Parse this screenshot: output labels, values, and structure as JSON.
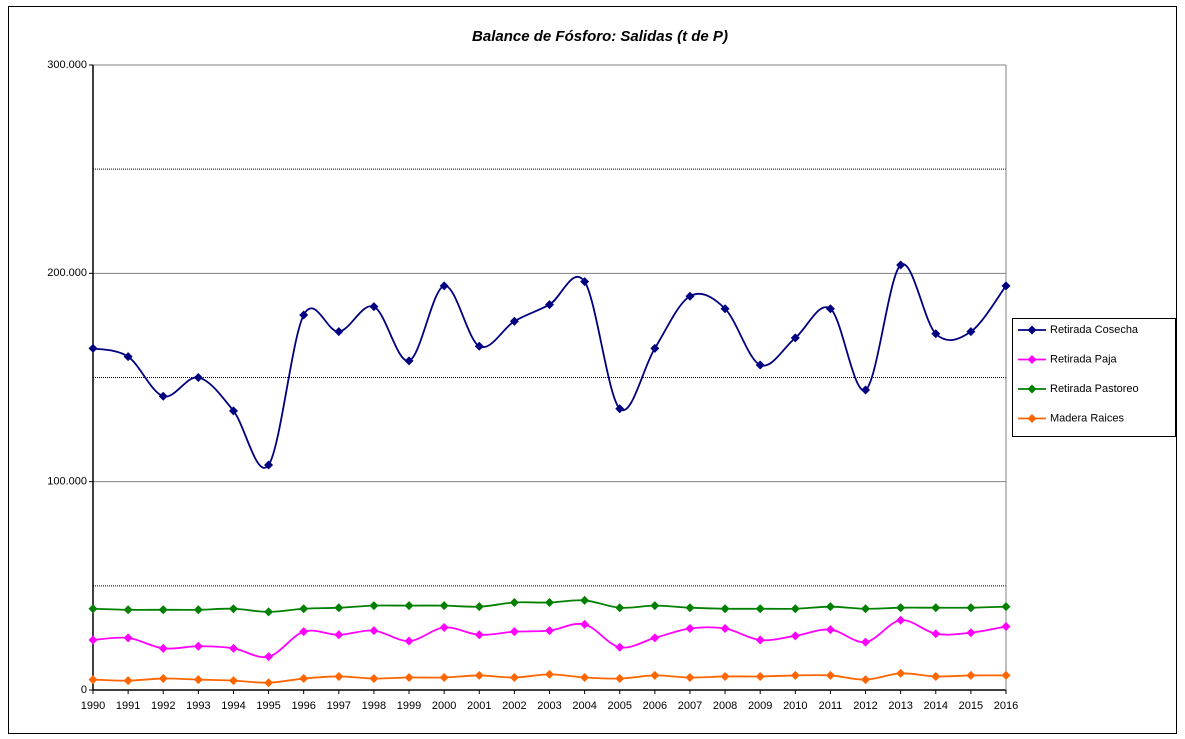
{
  "chart_data": {
    "type": "line",
    "title": "Balance de Fósforo: Salidas (t de P)",
    "categories": [
      "1990",
      "1991",
      "1992",
      "1993",
      "1994",
      "1995",
      "1996",
      "1997",
      "1998",
      "1999",
      "2000",
      "2001",
      "2002",
      "2003",
      "2004",
      "2005",
      "2006",
      "2007",
      "2008",
      "2009",
      "2010",
      "2011",
      "2012",
      "2013",
      "2014",
      "2015",
      "2016"
    ],
    "ylim": [
      0,
      300000
    ],
    "yticks": [
      0,
      {
        "value": 100000,
        "label": "100.000"
      },
      {
        "value": 200000,
        "label": "200.000"
      },
      {
        "value": 300000,
        "label": "300.000"
      }
    ],
    "yminor": [
      50000,
      150000,
      250000
    ],
    "grid": true,
    "smooth": true,
    "legend": "right",
    "series": [
      {
        "name": "Retirada Cosecha",
        "color": "#000080",
        "values": [
          164000,
          160000,
          141000,
          150000,
          134000,
          108000,
          180000,
          172000,
          184000,
          158000,
          194000,
          165000,
          177000,
          185000,
          196000,
          135000,
          164000,
          189000,
          183000,
          156000,
          169000,
          183000,
          144000,
          204000,
          171000,
          172000,
          194000
        ]
      },
      {
        "name": "Retirada Paja",
        "color": "#ff00ff",
        "values": [
          24000,
          25000,
          20000,
          21000,
          20000,
          16000,
          28000,
          26500,
          28500,
          23500,
          30000,
          26500,
          28000,
          28500,
          31500,
          20500,
          25000,
          29500,
          29500,
          24000,
          26000,
          29000,
          23000,
          33500,
          27000,
          27500,
          30500
        ]
      },
      {
        "name": "Retirada Pastoreo",
        "color": "#008000",
        "values": [
          39000,
          38500,
          38500,
          38500,
          39000,
          37500,
          39000,
          39500,
          40500,
          40500,
          40500,
          40000,
          42000,
          42000,
          43000,
          39500,
          40500,
          39500,
          39000,
          39000,
          39000,
          40000,
          39000,
          39500,
          39500,
          39500,
          40000
        ]
      },
      {
        "name": "Madera Raices",
        "color": "#ff6600",
        "values": [
          5000,
          4500,
          5500,
          5000,
          4500,
          3500,
          5500,
          6500,
          5500,
          6000,
          6000,
          7000,
          6000,
          7500,
          6000,
          5500,
          7000,
          6000,
          6500,
          6500,
          7000,
          7000,
          5000,
          8000,
          6500,
          7000,
          7000
        ]
      }
    ]
  }
}
